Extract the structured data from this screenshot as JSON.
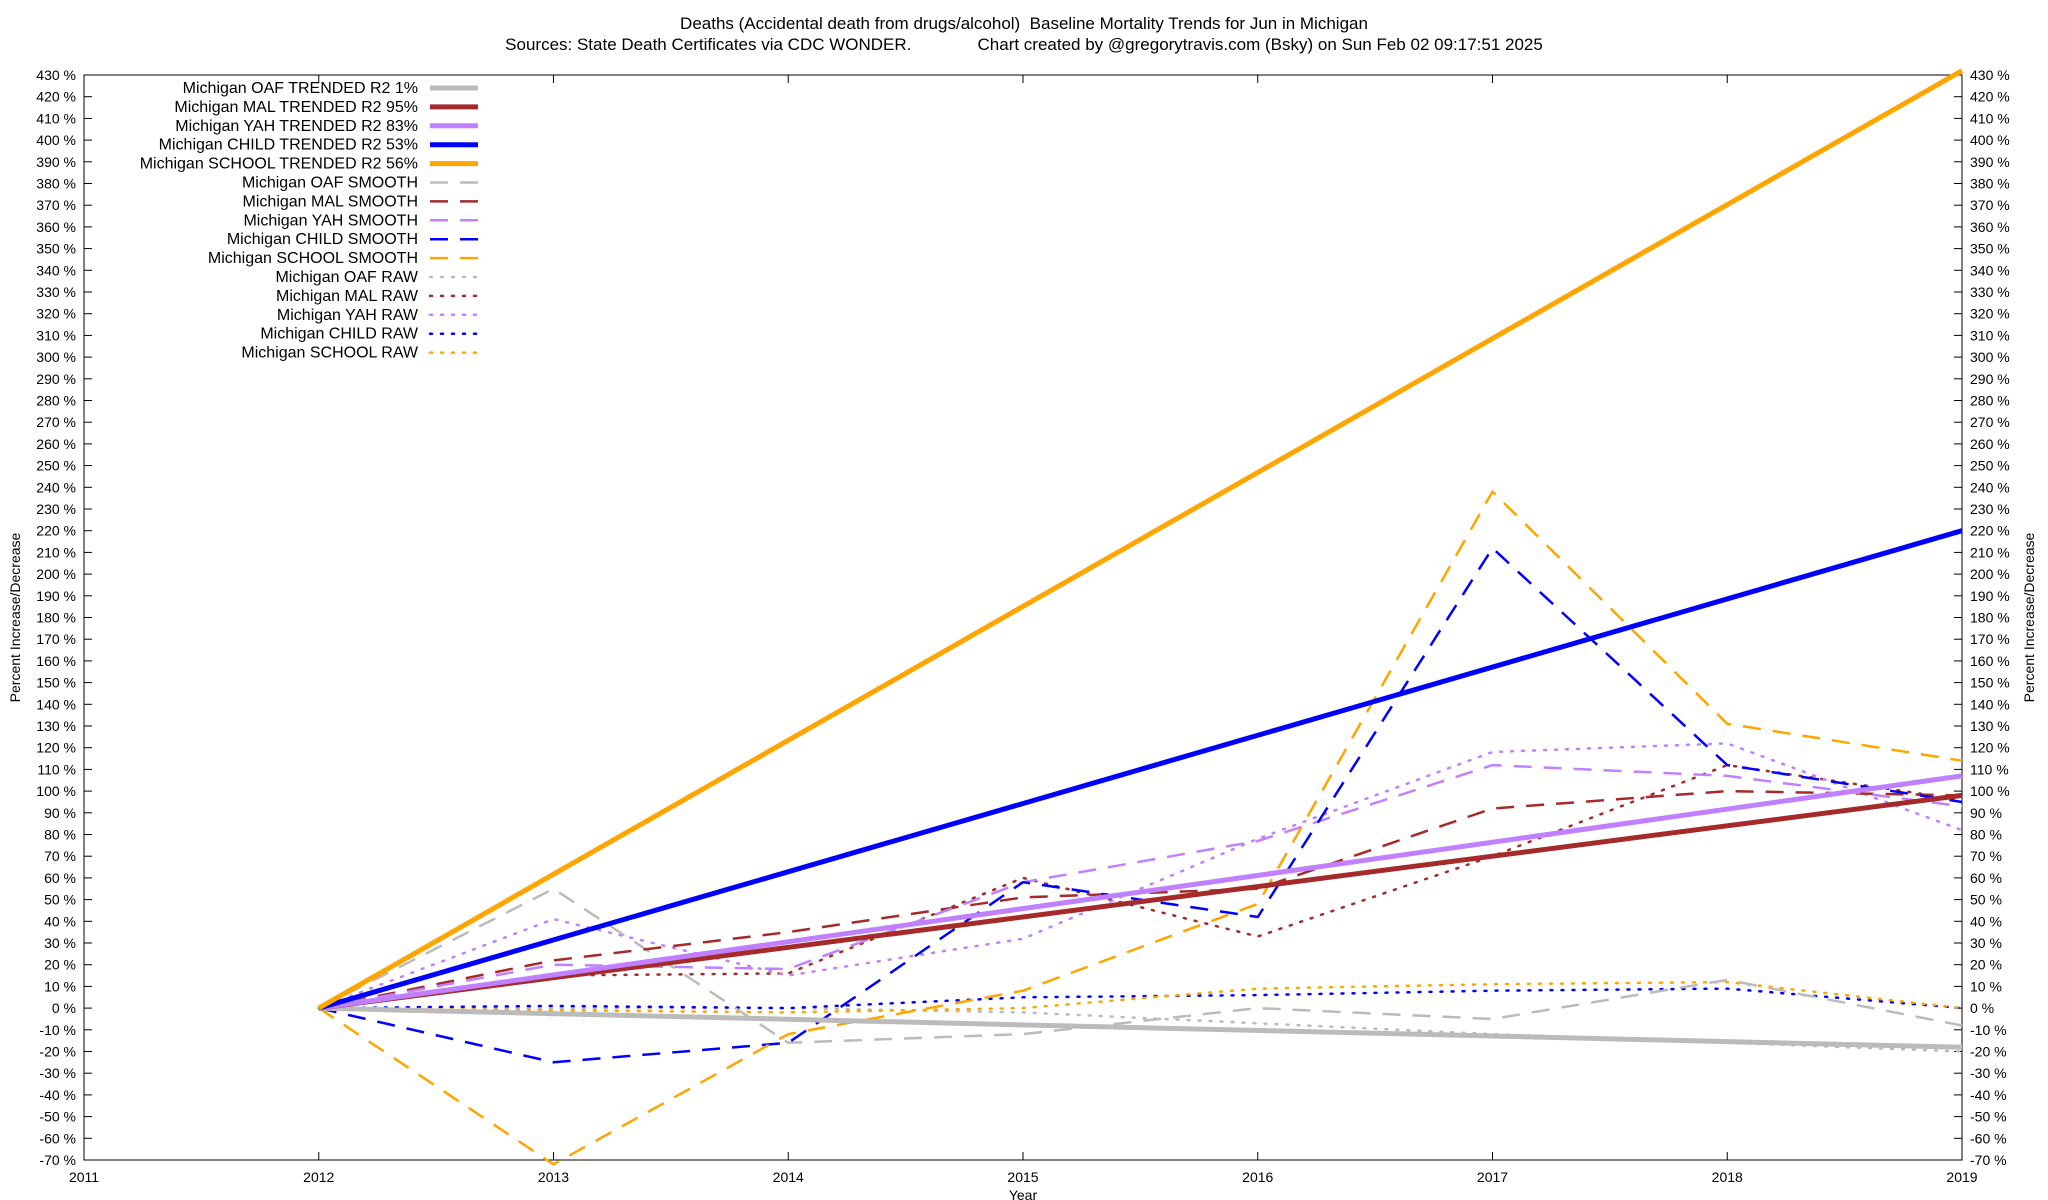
{
  "chart_data": {
    "type": "line",
    "title": "Deaths (Accidental death from drugs/alcohol)  Baseline Mortality Trends for Jun in Michigan",
    "subtitle": "Sources: State Death Certificates via CDC WONDER.              Chart created by @gregorytravis.com (Bsky) on Sun Feb 02 09:17:51 2025",
    "xlabel": "Year",
    "ylabel": "Percent Increase/Decrease",
    "y2label": "Percent Increase/Decrease",
    "xlim": [
      2011,
      2019
    ],
    "ylim": [
      -70,
      430
    ],
    "x_ticks": [
      "2011",
      "2012",
      "2013",
      "2014",
      "2015",
      "2016",
      "2017",
      "2018",
      "2019"
    ],
    "y_ticks": [
      "430 %",
      "420 %",
      "410 %",
      "400 %",
      "390 %",
      "380 %",
      "370 %",
      "360 %",
      "350 %",
      "340 %",
      "330 %",
      "320 %",
      "310 %",
      "300 %",
      "290 %",
      "280 %",
      "270 %",
      "260 %",
      "250 %",
      "240 %",
      "230 %",
      "220 %",
      "210 %",
      "200 %",
      "190 %",
      "180 %",
      "170 %",
      "160 %",
      "150 %",
      "140 %",
      "130 %",
      "120 %",
      "110 %",
      "100 %",
      "90 %",
      "80 %",
      "70 %",
      "60 %",
      "50 %",
      "40 %",
      "30 %",
      "20 %",
      "10 %",
      "0 %",
      "-10 %",
      "-20 %",
      "-30 %",
      "-40 %",
      "-50 %",
      "-60 %",
      "-70 %"
    ],
    "legend_position": "top-left",
    "grid": false,
    "series": [
      {
        "name": "Michigan OAF TRENDED R2   1%",
        "color": "#bbbbbb",
        "style": "solid",
        "x": [
          2012,
          2019
        ],
        "y": [
          0,
          -18
        ]
      },
      {
        "name": "Michigan MAL TRENDED R2  95%",
        "color": "#a52a2a",
        "style": "solid",
        "x": [
          2012,
          2019
        ],
        "y": [
          0,
          98
        ]
      },
      {
        "name": "Michigan YAH TRENDED R2  83%",
        "color": "#c080ff",
        "style": "solid",
        "x": [
          2012,
          2019
        ],
        "y": [
          0,
          107
        ]
      },
      {
        "name": "Michigan CHILD TRENDED R2  53%",
        "color": "#0000ff",
        "style": "solid",
        "x": [
          2012,
          2019
        ],
        "y": [
          0,
          220
        ]
      },
      {
        "name": "Michigan SCHOOL TRENDED R2  56%",
        "color": "#ffa500",
        "style": "solid",
        "x": [
          2012,
          2019
        ],
        "y": [
          0,
          432
        ]
      },
      {
        "name": "Michigan OAF SMOOTH",
        "color": "#bbbbbb",
        "style": "dashed",
        "x": [
          2012,
          2013,
          2014,
          2015,
          2016,
          2017,
          2018,
          2019
        ],
        "y": [
          0,
          55,
          -16,
          -12,
          0,
          -5,
          13,
          -8
        ]
      },
      {
        "name": "Michigan MAL SMOOTH",
        "color": "#a52a2a",
        "style": "dashed",
        "x": [
          2012,
          2013,
          2014,
          2015,
          2016,
          2017,
          2018,
          2019
        ],
        "y": [
          0,
          22,
          35,
          51,
          55,
          92,
          100,
          98
        ]
      },
      {
        "name": "Michigan YAH SMOOTH",
        "color": "#c080ff",
        "style": "dashed",
        "x": [
          2012,
          2013,
          2014,
          2015,
          2016,
          2017,
          2018,
          2019
        ],
        "y": [
          0,
          20,
          18,
          58,
          77,
          112,
          107,
          93
        ]
      },
      {
        "name": "Michigan CHILD SMOOTH",
        "color": "#0000ff",
        "style": "dashed",
        "x": [
          2012,
          2013,
          2014,
          2015,
          2016,
          2017,
          2018,
          2019
        ],
        "y": [
          0,
          -25,
          -16,
          58,
          42,
          212,
          112,
          95
        ]
      },
      {
        "name": "Michigan SCHOOL SMOOTH",
        "color": "#ffa500",
        "style": "dashed",
        "x": [
          2012,
          2013,
          2014,
          2015,
          2016,
          2017,
          2018,
          2019
        ],
        "y": [
          0,
          -72,
          -12,
          8,
          48,
          238,
          131,
          114
        ]
      },
      {
        "name": "Michigan OAF RAW",
        "color": "#bbbbbb",
        "style": "dotted",
        "x": [
          2012,
          2013,
          2014,
          2015,
          2016,
          2017,
          2018,
          2019
        ],
        "y": [
          0,
          0,
          0,
          -2,
          -7,
          -12,
          -16,
          -20
        ]
      },
      {
        "name": "Michigan MAL RAW",
        "color": "#a52a2a",
        "style": "dotted",
        "x": [
          2012,
          2013,
          2014,
          2015,
          2016,
          2017,
          2018,
          2019
        ],
        "y": [
          0,
          15,
          16,
          60,
          33,
          70,
          112,
          96
        ]
      },
      {
        "name": "Michigan YAH RAW",
        "color": "#c080ff",
        "style": "dotted",
        "x": [
          2012,
          2013,
          2014,
          2015,
          2016,
          2017,
          2018,
          2019
        ],
        "y": [
          0,
          41,
          15,
          32,
          78,
          118,
          122,
          82
        ]
      },
      {
        "name": "Michigan CHILD RAW",
        "color": "#0000ff",
        "style": "dotted",
        "x": [
          2012,
          2013,
          2014,
          2015,
          2016,
          2017,
          2018,
          2019
        ],
        "y": [
          0,
          1,
          0,
          5,
          6,
          8,
          9,
          0
        ]
      },
      {
        "name": "Michigan SCHOOL RAW",
        "color": "#ffa500",
        "style": "dotted",
        "x": [
          2012,
          2013,
          2014,
          2015,
          2016,
          2017,
          2018,
          2019
        ],
        "y": [
          0,
          -1,
          -2,
          0,
          9,
          11,
          12,
          0
        ]
      }
    ]
  }
}
